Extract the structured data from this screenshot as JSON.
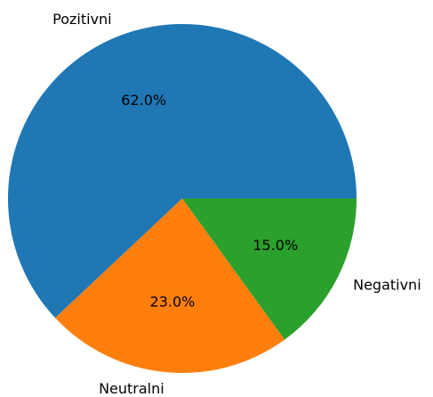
{
  "chart_data": {
    "type": "pie",
    "categories": [
      "Pozitivni",
      "Neutralni",
      "Negativni"
    ],
    "values": [
      62,
      23,
      15
    ],
    "value_labels": [
      "62.0%",
      "23.0%",
      "15.0%"
    ],
    "colors": [
      "#1f77b4",
      "#ff7f0e",
      "#2ca02c"
    ]
  }
}
